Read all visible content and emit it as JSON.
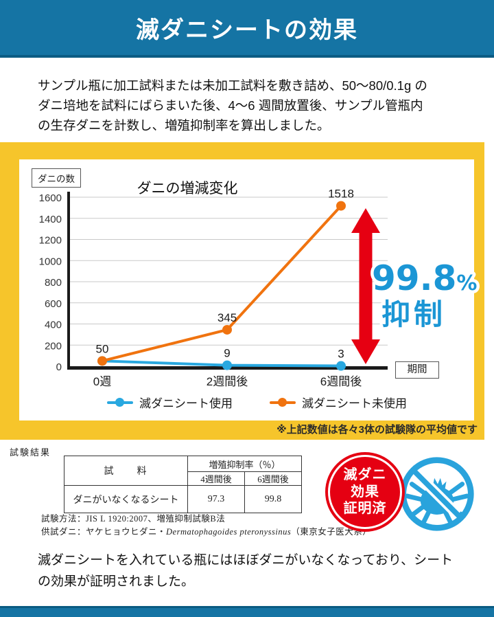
{
  "header": {
    "title": "滅ダニシートの効果"
  },
  "intro": {
    "lines": [
      "サンプル瓶に加工試料または未加工試料を敷き詰め、50～80/0.1g の",
      "ダニ培地を試料にばらまいた後、4～6 週間放置後、サンプル管瓶内",
      "の生存ダニを計数し、増殖抑制率を算出しました。"
    ]
  },
  "chart_data": {
    "type": "line",
    "title": "ダニの増減変化",
    "y_axis_label": "ダニの数",
    "x_axis_label": "期間",
    "categories": [
      "0週",
      "2週間後",
      "6週間後"
    ],
    "series": [
      {
        "name": "滅ダニシート使用",
        "color": "#29A8E0",
        "values": [
          50,
          9,
          3
        ]
      },
      {
        "name": "滅ダニシート未使用",
        "color": "#F0730F",
        "values": [
          50,
          345,
          1518
        ]
      }
    ],
    "ylim": [
      0,
      1600
    ],
    "y_tick_step": 200,
    "grid": true,
    "legend_position": "bottom"
  },
  "annotation": {
    "percent": "99.8",
    "percent_suffix": "%",
    "label": "抑制",
    "color": "#1B96D5",
    "arrow_color": "#E60012"
  },
  "chart_note": "※上記数値は各々3体の試験隊の平均値です",
  "results": {
    "section_label": "試験結果",
    "table": {
      "sample_header": "試　　料",
      "rate_header": "増殖抑制率（％）",
      "col_headers": [
        "4週間後",
        "6週間後"
      ],
      "rows": [
        {
          "sample": "ダニがいなくなるシート",
          "values": [
            "97.3",
            "99.8"
          ]
        }
      ]
    },
    "method_line": "試験方法：JIS L 1920:2007、増殖抑制試験B法",
    "mite_line_prefix": "供試ダニ：ヤケヒョウヒダニ・",
    "mite_line_latin": "Dermatophagoides pteronyssinus",
    "mite_line_suffix": "（東京女子医大系）"
  },
  "badge": {
    "lines": [
      "滅ダニ",
      "効果",
      "証明済"
    ],
    "color": "#E50012"
  },
  "conclusion": {
    "lines": [
      "滅ダニシートを入れている瓶にはほぼダニがいなくなっており、シート",
      "の効果が証明されました。"
    ]
  },
  "colors": {
    "header_blue": "#1574A4",
    "header_blue_dark": "#0C5C84",
    "frame_yellow": "#F6C52B",
    "series_used_blue": "#29A8E0",
    "series_unused_orange": "#F0730F",
    "arrow_red": "#E60012",
    "badge_red": "#E50012",
    "icon_blue": "#29A3DC",
    "callout_blue": "#1B96D5"
  }
}
